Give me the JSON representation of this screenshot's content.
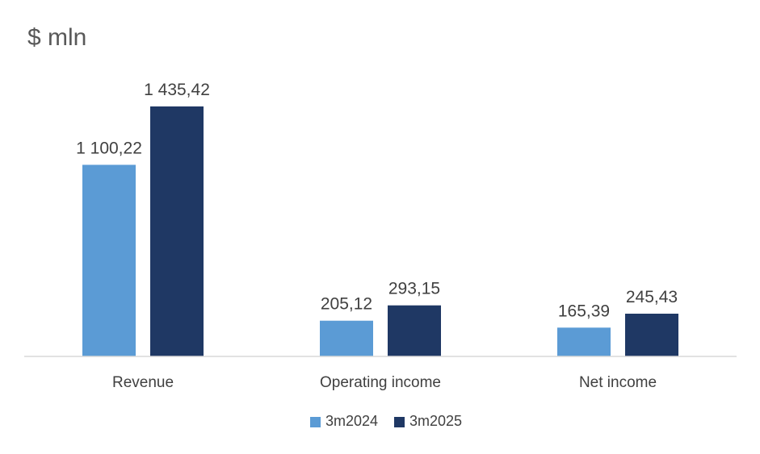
{
  "chart_data": {
    "type": "bar",
    "title": "$ mln",
    "xlabel": "",
    "ylabel": "",
    "categories": [
      "Revenue",
      "Operating income",
      "Net income"
    ],
    "series": [
      {
        "name": "3m2024",
        "color": "#5b9bd5",
        "values": [
          1100.22,
          205.12,
          165.39
        ],
        "labels": [
          "1 100,22",
          "205,12",
          "165,39"
        ]
      },
      {
        "name": "3m2025",
        "color": "#1f3864",
        "values": [
          1435.42,
          293.15,
          245.43
        ],
        "labels": [
          "1 435,42",
          "293,15",
          "245,43"
        ]
      }
    ],
    "ylim": [
      0,
      1435.42
    ],
    "grid": false,
    "legend_position": "bottom",
    "axis_color": "#d9d9d9",
    "text_color": "#404040",
    "title_color": "#595959"
  }
}
